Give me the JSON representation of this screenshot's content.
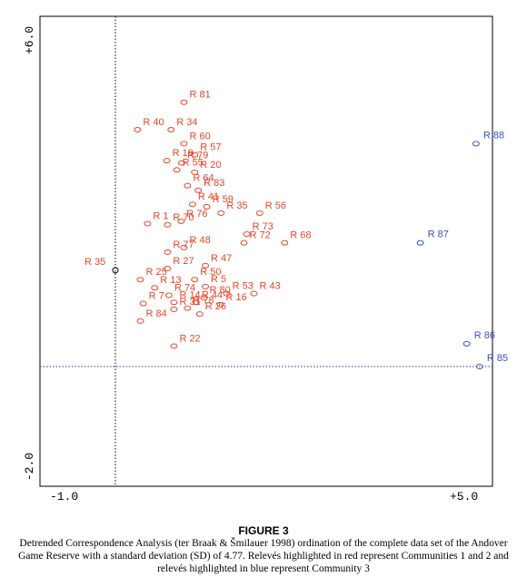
{
  "chart_data": {
    "type": "scatter",
    "title": "",
    "xlabel": "",
    "ylabel": "",
    "xlim": [
      -1.0,
      5.0
    ],
    "ylim": [
      -2.0,
      6.0
    ],
    "tick_labels": {
      "x_min": "-1.0",
      "x_max": "+5.0",
      "y_min": "-2.0",
      "y_max": "+6.0"
    },
    "reference_lines": [
      {
        "orientation": "vertical",
        "x": 0.0,
        "style": "dotted",
        "color": "#000000"
      },
      {
        "orientation": "horizontal",
        "y": 0.0,
        "style": "dotted",
        "color": "#2a2ad0"
      }
    ],
    "colors": {
      "community_1_2": "#e8452a",
      "community_3": "#3a4fc8",
      "origin_marker": "#000000"
    },
    "series": [
      {
        "group": "community_1_2",
        "color": "#e8452a",
        "points": [
          {
            "label": "R 81",
            "x": 0.96,
            "y": 4.53
          },
          {
            "label": "R 40",
            "x": 0.31,
            "y": 4.06
          },
          {
            "label": "R 34",
            "x": 0.78,
            "y": 4.06
          },
          {
            "label": "R 60",
            "x": 0.96,
            "y": 3.82
          },
          {
            "label": "R 57",
            "x": 1.11,
            "y": 3.63
          },
          {
            "label": "R 19",
            "x": 0.72,
            "y": 3.53
          },
          {
            "label": "R 79",
            "x": 0.93,
            "y": 3.49
          },
          {
            "label": "R 55",
            "x": 0.86,
            "y": 3.37
          },
          {
            "label": "R 20",
            "x": 1.11,
            "y": 3.33
          },
          {
            "label": "R 64",
            "x": 1.01,
            "y": 3.1
          },
          {
            "label": "R 83",
            "x": 1.16,
            "y": 3.02
          },
          {
            "label": "R 41",
            "x": 1.08,
            "y": 2.78
          },
          {
            "label": "R 59",
            "x": 1.28,
            "y": 2.74
          },
          {
            "label": "R 35",
            "x": 1.48,
            "y": 2.63
          },
          {
            "label": "R 56",
            "x": 2.02,
            "y": 2.63
          },
          {
            "label": "R 1",
            "x": 0.45,
            "y": 2.45
          },
          {
            "label": "R 70",
            "x": 0.73,
            "y": 2.43
          },
          {
            "label": "R 76",
            "x": 0.92,
            "y": 2.49
          },
          {
            "label": "R 73",
            "x": 1.84,
            "y": 2.27
          },
          {
            "label": "R 72",
            "x": 1.8,
            "y": 2.12
          },
          {
            "label": "R 68",
            "x": 2.37,
            "y": 2.12
          },
          {
            "label": "R 77",
            "x": 0.73,
            "y": 1.96
          },
          {
            "label": "R 48",
            "x": 0.96,
            "y": 2.04
          },
          {
            "label": "R 47",
            "x": 1.26,
            "y": 1.73
          },
          {
            "label": "R 27",
            "x": 0.73,
            "y": 1.68
          },
          {
            "label": "R 25",
            "x": 0.35,
            "y": 1.49
          },
          {
            "label": "R 50",
            "x": 1.11,
            "y": 1.49
          },
          {
            "label": "R 13",
            "x": 0.55,
            "y": 1.35
          },
          {
            "label": "R 5",
            "x": 1.26,
            "y": 1.37
          },
          {
            "label": "R 53",
            "x": 1.56,
            "y": 1.25
          },
          {
            "label": "R 43",
            "x": 1.94,
            "y": 1.25
          },
          {
            "label": "R 74",
            "x": 0.75,
            "y": 1.22
          },
          {
            "label": "R 14",
            "x": 0.82,
            "y": 1.1
          },
          {
            "label": "R 44",
            "x": 1.13,
            "y": 1.1
          },
          {
            "label": "R 80",
            "x": 1.24,
            "y": 1.18
          },
          {
            "label": "R 16",
            "x": 1.47,
            "y": 1.06
          },
          {
            "label": "R 7",
            "x": 0.39,
            "y": 1.08
          },
          {
            "label": "R 31",
            "x": 0.82,
            "y": 0.98
          },
          {
            "label": "R 78",
            "x": 1.01,
            "y": 1.0
          },
          {
            "label": "R 84",
            "x": 0.35,
            "y": 0.78
          },
          {
            "label": "R 26",
            "x": 1.18,
            "y": 0.9
          },
          {
            "label": "R 22",
            "x": 0.82,
            "y": 0.35
          }
        ]
      },
      {
        "group": "community_3",
        "color": "#3a4fc8",
        "points": [
          {
            "label": "R 88",
            "x": 5.05,
            "y": 3.82
          },
          {
            "label": "R 87",
            "x": 4.27,
            "y": 2.12
          },
          {
            "label": "R 86",
            "x": 4.92,
            "y": 0.39
          },
          {
            "label": "R 85",
            "x": 5.1,
            "y": 0.0
          }
        ]
      },
      {
        "group": "origin",
        "color": "#000000",
        "points": [
          {
            "label": "R 35",
            "x": 0.0,
            "y": 1.65
          }
        ]
      }
    ]
  },
  "caption": {
    "title": "FIGURE 3",
    "text": "Detrended Correspondence Analysis (ter Braak & Šmilauer 1998) ordination of the complete data set of the Andover Game Reserve with a standard deviation (SD) of 4.77. Relevés highlighted in red represent  Communities 1 and 2 and relevés highlighted in blue represent Community 3"
  }
}
